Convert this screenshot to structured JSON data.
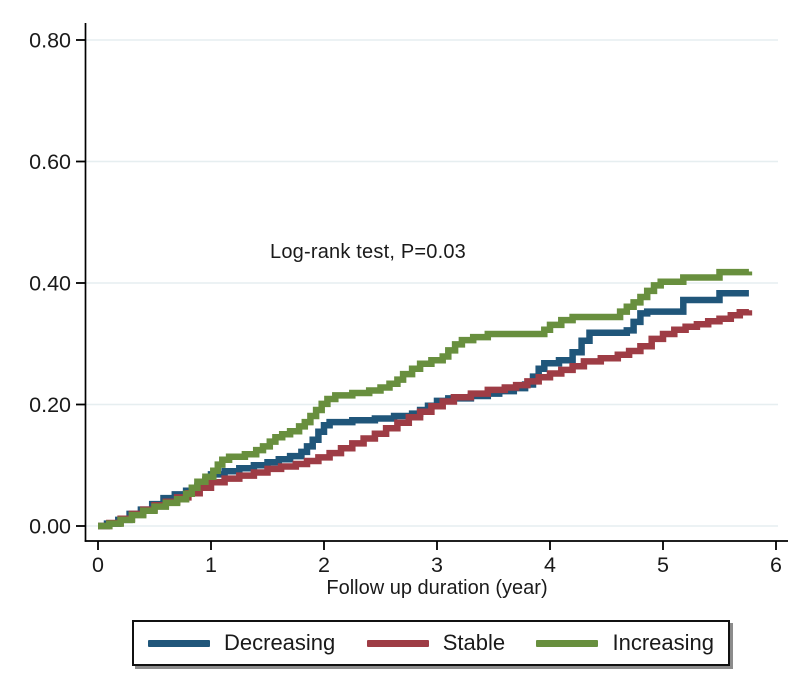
{
  "figure": {
    "annotation": "Log-rank test, P=0.03",
    "xlabel": "Follow up duration (year)"
  },
  "legend": {
    "items": [
      {
        "label": "Decreasing",
        "color": "#20567a"
      },
      {
        "label": "Stable",
        "color": "#9e3c45"
      },
      {
        "label": "Increasing",
        "color": "#688f3e"
      }
    ]
  },
  "chart_data": {
    "type": "line",
    "subtype": "step-after",
    "title": "",
    "xlabel": "Follow up duration (year)",
    "ylabel": "",
    "xlim": [
      0,
      6
    ],
    "ylim": [
      0,
      0.8
    ],
    "x_ticks": [
      0,
      1,
      2,
      3,
      4,
      5,
      6
    ],
    "x_tick_labels": [
      "0",
      "1",
      "2",
      "3",
      "4",
      "5",
      "6"
    ],
    "y_ticks": [
      0,
      0.2,
      0.4,
      0.6,
      0.8
    ],
    "y_tick_labels": [
      "0.00",
      "0.20",
      "0.40",
      "0.60",
      "0.80"
    ],
    "grid": "horizontal",
    "grid_color": "#e6eef0",
    "axis_color": "#000000",
    "legend_position": "bottom",
    "annotation": {
      "text": "Log-rank test, P=0.03",
      "x": 2.4,
      "y": 0.45
    },
    "series": [
      {
        "name": "Decreasing",
        "color": "#20567a",
        "points": [
          [
            0,
            0
          ],
          [
            0.08,
            0.004
          ],
          [
            0.18,
            0.01
          ],
          [
            0.28,
            0.02
          ],
          [
            0.38,
            0.027
          ],
          [
            0.48,
            0.036
          ],
          [
            0.58,
            0.046
          ],
          [
            0.68,
            0.052
          ],
          [
            0.78,
            0.058
          ],
          [
            0.88,
            0.066
          ],
          [
            0.95,
            0.076
          ],
          [
            1.0,
            0.085
          ],
          [
            1.12,
            0.09
          ],
          [
            1.25,
            0.095
          ],
          [
            1.38,
            0.1
          ],
          [
            1.5,
            0.105
          ],
          [
            1.6,
            0.11
          ],
          [
            1.7,
            0.115
          ],
          [
            1.8,
            0.122
          ],
          [
            1.85,
            0.131
          ],
          [
            1.9,
            0.142
          ],
          [
            1.95,
            0.155
          ],
          [
            2.0,
            0.166
          ],
          [
            2.05,
            0.171
          ],
          [
            2.25,
            0.174
          ],
          [
            2.45,
            0.177
          ],
          [
            2.62,
            0.181
          ],
          [
            2.78,
            0.185
          ],
          [
            2.85,
            0.191
          ],
          [
            2.92,
            0.198
          ],
          [
            3.0,
            0.206
          ],
          [
            3.1,
            0.21
          ],
          [
            3.3,
            0.214
          ],
          [
            3.45,
            0.218
          ],
          [
            3.55,
            0.222
          ],
          [
            3.68,
            0.227
          ],
          [
            3.78,
            0.233
          ],
          [
            3.85,
            0.246
          ],
          [
            3.9,
            0.259
          ],
          [
            3.95,
            0.268
          ],
          [
            4.08,
            0.273
          ],
          [
            4.2,
            0.286
          ],
          [
            4.28,
            0.305
          ],
          [
            4.35,
            0.318
          ],
          [
            4.68,
            0.322
          ],
          [
            4.74,
            0.336
          ],
          [
            4.8,
            0.35
          ],
          [
            4.86,
            0.353
          ],
          [
            5.18,
            0.372
          ],
          [
            5.5,
            0.383
          ],
          [
            5.76,
            0.383
          ]
        ]
      },
      {
        "name": "Stable",
        "color": "#9e3c45",
        "points": [
          [
            0,
            0
          ],
          [
            0.1,
            0.005
          ],
          [
            0.2,
            0.012
          ],
          [
            0.3,
            0.02
          ],
          [
            0.4,
            0.027
          ],
          [
            0.5,
            0.034
          ],
          [
            0.6,
            0.04
          ],
          [
            0.7,
            0.047
          ],
          [
            0.8,
            0.054
          ],
          [
            0.9,
            0.063
          ],
          [
            1.0,
            0.072
          ],
          [
            1.12,
            0.078
          ],
          [
            1.25,
            0.083
          ],
          [
            1.38,
            0.088
          ],
          [
            1.5,
            0.094
          ],
          [
            1.62,
            0.098
          ],
          [
            1.75,
            0.102
          ],
          [
            1.85,
            0.107
          ],
          [
            1.95,
            0.113
          ],
          [
            2.05,
            0.12
          ],
          [
            2.15,
            0.128
          ],
          [
            2.25,
            0.136
          ],
          [
            2.35,
            0.144
          ],
          [
            2.45,
            0.152
          ],
          [
            2.55,
            0.161
          ],
          [
            2.65,
            0.17
          ],
          [
            2.75,
            0.179
          ],
          [
            2.85,
            0.188
          ],
          [
            2.95,
            0.197
          ],
          [
            3.05,
            0.205
          ],
          [
            3.15,
            0.212
          ],
          [
            3.3,
            0.218
          ],
          [
            3.45,
            0.224
          ],
          [
            3.6,
            0.228
          ],
          [
            3.7,
            0.232
          ],
          [
            3.8,
            0.238
          ],
          [
            3.9,
            0.245
          ],
          [
            4.0,
            0.251
          ],
          [
            4.1,
            0.257
          ],
          [
            4.2,
            0.263
          ],
          [
            4.3,
            0.271
          ],
          [
            4.45,
            0.276
          ],
          [
            4.6,
            0.282
          ],
          [
            4.7,
            0.288
          ],
          [
            4.8,
            0.296
          ],
          [
            4.9,
            0.308
          ],
          [
            5.0,
            0.316
          ],
          [
            5.1,
            0.323
          ],
          [
            5.2,
            0.328
          ],
          [
            5.3,
            0.332
          ],
          [
            5.4,
            0.337
          ],
          [
            5.5,
            0.341
          ],
          [
            5.6,
            0.347
          ],
          [
            5.68,
            0.352
          ],
          [
            5.76,
            0.355
          ]
        ]
      },
      {
        "name": "Increasing",
        "color": "#688f3e",
        "points": [
          [
            0,
            0
          ],
          [
            0.1,
            0.004
          ],
          [
            0.2,
            0.01
          ],
          [
            0.3,
            0.018
          ],
          [
            0.4,
            0.025
          ],
          [
            0.5,
            0.032
          ],
          [
            0.6,
            0.038
          ],
          [
            0.7,
            0.044
          ],
          [
            0.78,
            0.053
          ],
          [
            0.83,
            0.063
          ],
          [
            0.88,
            0.073
          ],
          [
            0.95,
            0.081
          ],
          [
            1.02,
            0.091
          ],
          [
            1.06,
            0.101
          ],
          [
            1.1,
            0.109
          ],
          [
            1.16,
            0.114
          ],
          [
            1.3,
            0.118
          ],
          [
            1.4,
            0.125
          ],
          [
            1.46,
            0.131
          ],
          [
            1.52,
            0.139
          ],
          [
            1.57,
            0.146
          ],
          [
            1.63,
            0.151
          ],
          [
            1.7,
            0.156
          ],
          [
            1.78,
            0.164
          ],
          [
            1.83,
            0.171
          ],
          [
            1.88,
            0.181
          ],
          [
            1.93,
            0.191
          ],
          [
            1.98,
            0.201
          ],
          [
            2.03,
            0.209
          ],
          [
            2.1,
            0.215
          ],
          [
            2.25,
            0.219
          ],
          [
            2.4,
            0.223
          ],
          [
            2.5,
            0.228
          ],
          [
            2.58,
            0.234
          ],
          [
            2.65,
            0.241
          ],
          [
            2.7,
            0.25
          ],
          [
            2.78,
            0.259
          ],
          [
            2.85,
            0.267
          ],
          [
            2.95,
            0.273
          ],
          [
            3.05,
            0.279
          ],
          [
            3.1,
            0.289
          ],
          [
            3.16,
            0.299
          ],
          [
            3.22,
            0.306
          ],
          [
            3.32,
            0.311
          ],
          [
            3.45,
            0.316
          ],
          [
            3.95,
            0.323
          ],
          [
            4.0,
            0.331
          ],
          [
            4.1,
            0.339
          ],
          [
            4.2,
            0.344
          ],
          [
            4.62,
            0.353
          ],
          [
            4.68,
            0.361
          ],
          [
            4.74,
            0.368
          ],
          [
            4.8,
            0.377
          ],
          [
            4.86,
            0.387
          ],
          [
            4.92,
            0.396
          ],
          [
            4.98,
            0.402
          ],
          [
            5.18,
            0.409
          ],
          [
            5.5,
            0.418
          ],
          [
            5.76,
            0.419
          ]
        ]
      }
    ]
  }
}
